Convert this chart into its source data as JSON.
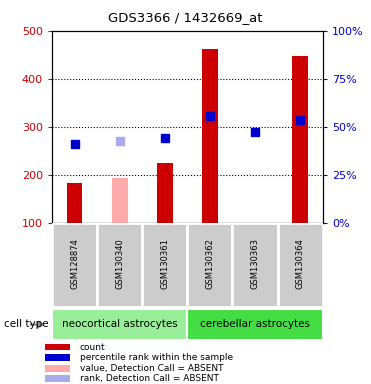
{
  "title": "GDS3366 / 1432669_at",
  "samples": [
    "GSM128874",
    "GSM130340",
    "GSM130361",
    "GSM130362",
    "GSM130363",
    "GSM130364"
  ],
  "groups": {
    "neocortical astrocytes": [
      0,
      1,
      2
    ],
    "cerebellar astrocytes": [
      3,
      4,
      5
    ]
  },
  "bar_values": [
    183,
    193,
    224,
    462,
    100,
    447
  ],
  "bar_colors": [
    "#cc0000",
    "#ffaaaa",
    "#cc0000",
    "#cc0000",
    "#cc0000",
    "#cc0000"
  ],
  "rank_values": [
    263,
    270,
    276,
    322,
    290,
    315
  ],
  "rank_colors": [
    "#0000cc",
    "#aaaaee",
    "#0000cc",
    "#0000cc",
    "#0000cc",
    "#0000cc"
  ],
  "ylim_left": [
    100,
    500
  ],
  "ylim_right": [
    0,
    100
  ],
  "yticks_left": [
    100,
    200,
    300,
    400,
    500
  ],
  "yticks_right": [
    0,
    25,
    50,
    75,
    100
  ],
  "ylabel_left_color": "#cc0000",
  "ylabel_right_color": "#0000cc",
  "group_colors": {
    "neocortical astrocytes": "#99ee99",
    "cerebellar astrocytes": "#44dd44"
  },
  "cell_type_label": "cell type",
  "background_color": "#ffffff",
  "plot_bg_color": "#ffffff",
  "marker_size": 6,
  "bar_width": 0.35,
  "bar_bottom": 100,
  "legend_items": [
    {
      "label": "count",
      "color": "#cc0000"
    },
    {
      "label": "percentile rank within the sample",
      "color": "#0000cc"
    },
    {
      "label": "value, Detection Call = ABSENT",
      "color": "#ffaaaa"
    },
    {
      "label": "rank, Detection Call = ABSENT",
      "color": "#aaaaee"
    }
  ],
  "sample_box_color": "#cccccc",
  "sample_box_border": "#ffffff"
}
